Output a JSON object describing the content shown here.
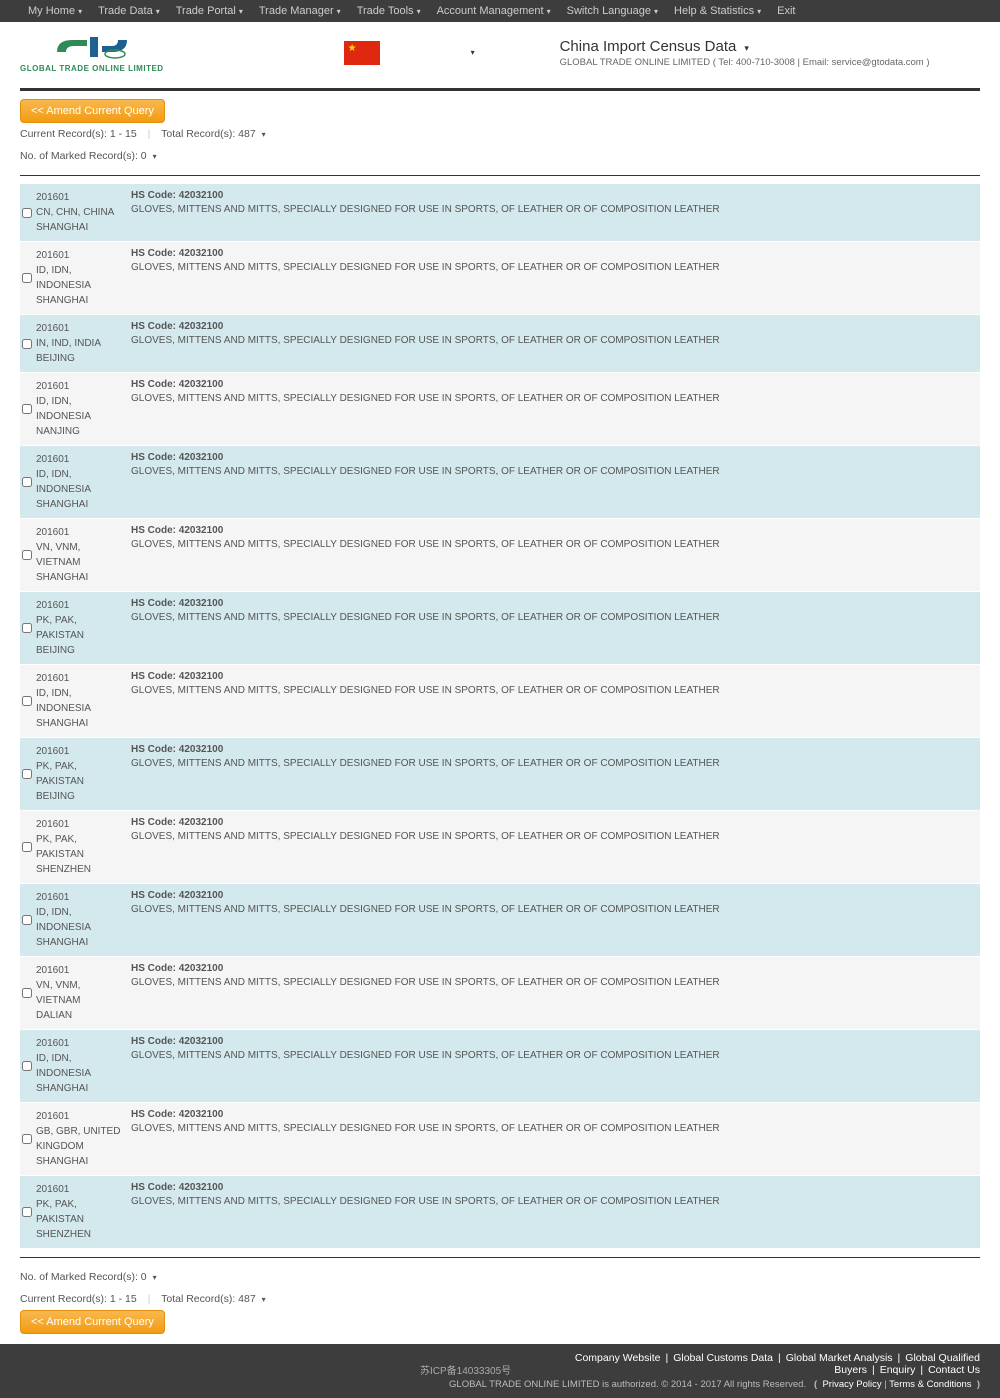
{
  "topbar": {
    "items": [
      "My Home",
      "Trade Data",
      "Trade Portal",
      "Trade Manager",
      "Trade Tools",
      "Account Management",
      "Switch Language",
      "Help & Statistics",
      "Exit"
    ]
  },
  "logo": {
    "subtitle": "GLOBAL TRADE ONLINE LIMITED"
  },
  "header": {
    "title": "China Import Census Data",
    "company": "GLOBAL TRADE ONLINE LIMITED ( Tel: 400-710-3008 | Email: service@gtodata.com )"
  },
  "buttons": {
    "amend": "<< Amend Current Query"
  },
  "meta": {
    "currentLabel": "Current Record(s):",
    "currentValue": "1 - 15",
    "totalLabel": "Total Record(s):",
    "totalValue": "487",
    "markedLabel": "No. of Marked Record(s):",
    "markedValue": "0"
  },
  "hs_label": "HS Code:",
  "records": [
    {
      "date": "201601",
      "country": "CN, CHN, CHINA",
      "city": "SHANGHAI",
      "hs": "42032100",
      "desc": "GLOVES, MITTENS AND MITTS, SPECIALLY DESIGNED FOR USE IN SPORTS, OF LEATHER OR OF COMPOSITION LEATHER"
    },
    {
      "date": "201601",
      "country": "ID, IDN, INDONESIA",
      "city": "SHANGHAI",
      "hs": "42032100",
      "desc": "GLOVES, MITTENS AND MITTS, SPECIALLY DESIGNED FOR USE IN SPORTS, OF LEATHER OR OF COMPOSITION LEATHER"
    },
    {
      "date": "201601",
      "country": "IN, IND, INDIA",
      "city": "BEIJING",
      "hs": "42032100",
      "desc": "GLOVES, MITTENS AND MITTS, SPECIALLY DESIGNED FOR USE IN SPORTS, OF LEATHER OR OF COMPOSITION LEATHER"
    },
    {
      "date": "201601",
      "country": "ID, IDN, INDONESIA",
      "city": "NANJING",
      "hs": "42032100",
      "desc": "GLOVES, MITTENS AND MITTS, SPECIALLY DESIGNED FOR USE IN SPORTS, OF LEATHER OR OF COMPOSITION LEATHER"
    },
    {
      "date": "201601",
      "country": "ID, IDN, INDONESIA",
      "city": "SHANGHAI",
      "hs": "42032100",
      "desc": "GLOVES, MITTENS AND MITTS, SPECIALLY DESIGNED FOR USE IN SPORTS, OF LEATHER OR OF COMPOSITION LEATHER"
    },
    {
      "date": "201601",
      "country": "VN, VNM, VIETNAM",
      "city": "SHANGHAI",
      "hs": "42032100",
      "desc": "GLOVES, MITTENS AND MITTS, SPECIALLY DESIGNED FOR USE IN SPORTS, OF LEATHER OR OF COMPOSITION LEATHER"
    },
    {
      "date": "201601",
      "country": "PK, PAK, PAKISTAN",
      "city": "BEIJING",
      "hs": "42032100",
      "desc": "GLOVES, MITTENS AND MITTS, SPECIALLY DESIGNED FOR USE IN SPORTS, OF LEATHER OR OF COMPOSITION LEATHER"
    },
    {
      "date": "201601",
      "country": "ID, IDN, INDONESIA",
      "city": "SHANGHAI",
      "hs": "42032100",
      "desc": "GLOVES, MITTENS AND MITTS, SPECIALLY DESIGNED FOR USE IN SPORTS, OF LEATHER OR OF COMPOSITION LEATHER"
    },
    {
      "date": "201601",
      "country": "PK, PAK, PAKISTAN",
      "city": "BEIJING",
      "hs": "42032100",
      "desc": "GLOVES, MITTENS AND MITTS, SPECIALLY DESIGNED FOR USE IN SPORTS, OF LEATHER OR OF COMPOSITION LEATHER"
    },
    {
      "date": "201601",
      "country": "PK, PAK, PAKISTAN",
      "city": "SHENZHEN",
      "hs": "42032100",
      "desc": "GLOVES, MITTENS AND MITTS, SPECIALLY DESIGNED FOR USE IN SPORTS, OF LEATHER OR OF COMPOSITION LEATHER"
    },
    {
      "date": "201601",
      "country": "ID, IDN, INDONESIA",
      "city": "SHANGHAI",
      "hs": "42032100",
      "desc": "GLOVES, MITTENS AND MITTS, SPECIALLY DESIGNED FOR USE IN SPORTS, OF LEATHER OR OF COMPOSITION LEATHER"
    },
    {
      "date": "201601",
      "country": "VN, VNM, VIETNAM",
      "city": "DALIAN",
      "hs": "42032100",
      "desc": "GLOVES, MITTENS AND MITTS, SPECIALLY DESIGNED FOR USE IN SPORTS, OF LEATHER OR OF COMPOSITION LEATHER"
    },
    {
      "date": "201601",
      "country": "ID, IDN, INDONESIA",
      "city": "SHANGHAI",
      "hs": "42032100",
      "desc": "GLOVES, MITTENS AND MITTS, SPECIALLY DESIGNED FOR USE IN SPORTS, OF LEATHER OR OF COMPOSITION LEATHER"
    },
    {
      "date": "201601",
      "country": "GB, GBR, UNITED KINGDOM",
      "city": "SHANGHAI",
      "hs": "42032100",
      "desc": "GLOVES, MITTENS AND MITTS, SPECIALLY DESIGNED FOR USE IN SPORTS, OF LEATHER OR OF COMPOSITION LEATHER"
    },
    {
      "date": "201601",
      "country": "PK, PAK, PAKISTAN",
      "city": "SHENZHEN",
      "hs": "42032100",
      "desc": "GLOVES, MITTENS AND MITTS, SPECIALLY DESIGNED FOR USE IN SPORTS, OF LEATHER OR OF COMPOSITION LEATHER"
    }
  ],
  "icp": "苏ICP备14033305号",
  "footer": {
    "links": [
      "Company Website",
      "Global Customs Data",
      "Global Market Analysis",
      "Global Qualified Buyers",
      "Enquiry",
      "Contact Us"
    ],
    "copyright": "GLOBAL TRADE ONLINE LIMITED is authorized. © 2014 - 2017 All rights Reserved.",
    "privacy": "Privacy Policy",
    "terms": "Terms & Conditions"
  }
}
